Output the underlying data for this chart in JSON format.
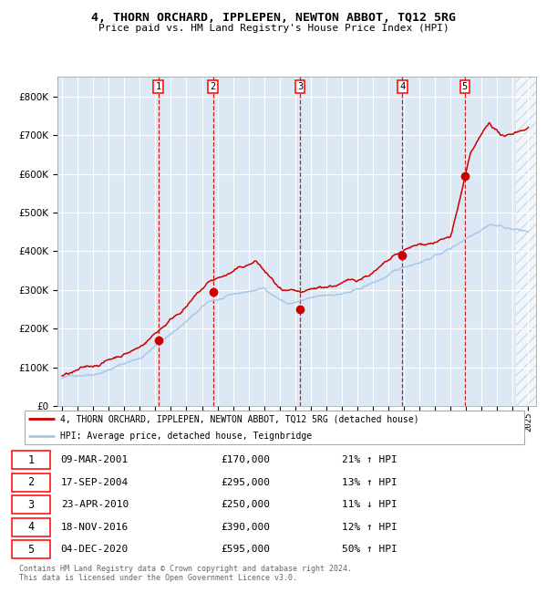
{
  "title": "4, THORN ORCHARD, IPPLEPEN, NEWTON ABBOT, TQ12 5RG",
  "subtitle": "Price paid vs. HM Land Registry's House Price Index (HPI)",
  "legend_line1": "4, THORN ORCHARD, IPPLEPEN, NEWTON ABBOT, TQ12 5RG (detached house)",
  "legend_line2": "HPI: Average price, detached house, Teignbridge",
  "footer1": "Contains HM Land Registry data © Crown copyright and database right 2024.",
  "footer2": "This data is licensed under the Open Government Licence v3.0.",
  "transactions": [
    {
      "num": 1,
      "date": "09-MAR-2001",
      "price": 170000,
      "pct": "21%",
      "dir": "↑"
    },
    {
      "num": 2,
      "date": "17-SEP-2004",
      "price": 295000,
      "pct": "13%",
      "dir": "↑"
    },
    {
      "num": 3,
      "date": "23-APR-2010",
      "price": 250000,
      "pct": "11%",
      "dir": "↓"
    },
    {
      "num": 4,
      "date": "18-NOV-2016",
      "price": 390000,
      "pct": "12%",
      "dir": "↑"
    },
    {
      "num": 5,
      "date": "04-DEC-2020",
      "price": 595000,
      "pct": "50%",
      "dir": "↑"
    }
  ],
  "transaction_x": [
    2001.19,
    2004.72,
    2010.31,
    2016.89,
    2020.92
  ],
  "transaction_y": [
    170000,
    295000,
    250000,
    390000,
    595000
  ],
  "hpi_color": "#a8c8e8",
  "price_color": "#cc0000",
  "bg_color": "#dce9f5",
  "hatch_color": "#b8c8d8",
  "grid_color": "#ffffff",
  "dashed_color": "#cc0000",
  "ylim": [
    0,
    850000
  ],
  "xlim_start": 1994.7,
  "xlim_end": 2025.5,
  "hatch_start": 2024.2
}
